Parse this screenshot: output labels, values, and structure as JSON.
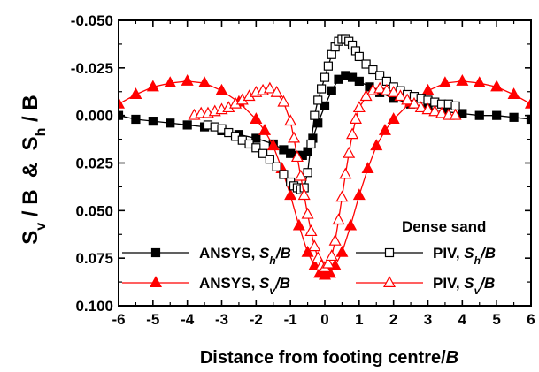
{
  "chart_data": {
    "type": "line",
    "xlabel": {
      "main": "Distance from footing centre/",
      "italic": "B"
    },
    "ylabel": {
      "p1": "S",
      "p1sub": "v",
      "p2": " / B  &  ",
      "p3": "S",
      "p3sub": "h",
      "p4": " / B"
    },
    "xlim": [
      -6,
      6
    ],
    "ylim": [
      0.1,
      -0.05
    ],
    "y_inverted": true,
    "grid": false,
    "x_ticks": [
      -6,
      -5,
      -4,
      -3,
      -2,
      -1,
      0,
      1,
      2,
      3,
      4,
      5,
      6
    ],
    "x_tick_labels": [
      "-6",
      "-5",
      "-4",
      "-3",
      "-2",
      "-1",
      "0",
      "1",
      "2",
      "3",
      "4",
      "5",
      "6"
    ],
    "y_ticks": [
      -0.05,
      -0.025,
      0,
      0.025,
      0.05,
      0.075,
      0.1
    ],
    "y_tick_labels": [
      "-0.050",
      "-0.025",
      "0.000",
      "0.025",
      "0.050",
      "0.075",
      "0.100"
    ],
    "legend": {
      "title": "Dense sand",
      "placement": "bottom"
    },
    "series": [
      {
        "name": "ANSYS, S_h/B",
        "legend_main": "ANSYS, ",
        "legend_italic": "S",
        "legend_sub": "h",
        "legend_tail": "/B",
        "color": "#000000",
        "marker": "square",
        "filled": true,
        "x": [
          -6,
          -5.5,
          -5,
          -4.5,
          -4,
          -3.5,
          -3,
          -2.5,
          -2,
          -1.5,
          -1.2,
          -1.0,
          -0.8,
          -0.65,
          -0.5,
          -0.35,
          -0.2,
          0,
          0.2,
          0.4,
          0.6,
          0.8,
          1.0,
          1.3,
          1.6,
          2.0,
          2.5,
          3.0,
          3.5,
          4.0,
          4.5,
          5.0,
          5.5,
          6.0
        ],
        "y": [
          0.0,
          0.002,
          0.003,
          0.004,
          0.005,
          0.006,
          0.008,
          0.01,
          0.012,
          0.015,
          0.018,
          0.02,
          0.021,
          0.021,
          0.019,
          0.012,
          0.004,
          -0.005,
          -0.013,
          -0.019,
          -0.021,
          -0.02,
          -0.018,
          -0.015,
          -0.012,
          -0.009,
          -0.006,
          -0.004,
          -0.002,
          -0.001,
          0.0,
          0.0,
          0.001,
          0.002
        ]
      },
      {
        "name": "ANSYS, S_v/B",
        "legend_main": "ANSYS, ",
        "legend_italic": "S",
        "legend_sub": "v",
        "legend_tail": "/B",
        "color": "#ff0000",
        "marker": "triangle",
        "filled": true,
        "x": [
          -6,
          -5.5,
          -5,
          -4.5,
          -4,
          -3.5,
          -3,
          -2.5,
          -2,
          -1.75,
          -1.5,
          -1.25,
          -1.0,
          -0.75,
          -0.5,
          -0.3,
          -0.15,
          0,
          0.15,
          0.3,
          0.5,
          0.75,
          1.0,
          1.25,
          1.5,
          1.75,
          2.0,
          2.5,
          3.0,
          3.5,
          4.0,
          4.5,
          5.0,
          5.5,
          6.0
        ],
        "y": [
          -0.006,
          -0.011,
          -0.015,
          -0.017,
          -0.018,
          -0.017,
          -0.013,
          -0.007,
          0.002,
          0.008,
          0.016,
          0.028,
          0.042,
          0.058,
          0.072,
          0.079,
          0.083,
          0.084,
          0.083,
          0.079,
          0.072,
          0.058,
          0.042,
          0.028,
          0.016,
          0.008,
          0.002,
          -0.007,
          -0.013,
          -0.017,
          -0.018,
          -0.017,
          -0.015,
          -0.011,
          -0.006
        ]
      },
      {
        "name": "PIV, S_h/B",
        "legend_main": "PIV, ",
        "legend_italic": "S",
        "legend_sub": "h",
        "legend_tail": "/B",
        "color": "#000000",
        "marker": "square",
        "filled": false,
        "x": [
          -3.4,
          -3.2,
          -3.0,
          -2.8,
          -2.6,
          -2.4,
          -2.2,
          -2.0,
          -1.8,
          -1.6,
          -1.4,
          -1.2,
          -1.0,
          -0.9,
          -0.8,
          -0.7,
          -0.6,
          -0.5,
          -0.4,
          -0.3,
          -0.2,
          -0.1,
          0,
          0.1,
          0.2,
          0.3,
          0.4,
          0.5,
          0.6,
          0.7,
          0.8,
          0.9,
          1.0,
          1.2,
          1.4,
          1.6,
          1.8,
          2.0,
          2.2,
          2.4,
          2.6,
          2.8,
          3.0,
          3.2,
          3.4,
          3.6,
          3.8
        ],
        "y": [
          0.005,
          0.006,
          0.007,
          0.009,
          0.011,
          0.013,
          0.015,
          0.017,
          0.02,
          0.023,
          0.027,
          0.031,
          0.035,
          0.037,
          0.038,
          0.039,
          0.038,
          0.03,
          0.015,
          0.0,
          -0.008,
          -0.014,
          -0.02,
          -0.026,
          -0.032,
          -0.036,
          -0.039,
          -0.04,
          -0.04,
          -0.039,
          -0.037,
          -0.034,
          -0.031,
          -0.027,
          -0.024,
          -0.021,
          -0.018,
          -0.015,
          -0.013,
          -0.011,
          -0.01,
          -0.009,
          -0.008,
          -0.007,
          -0.006,
          -0.006,
          -0.005
        ]
      },
      {
        "name": "PIV, S_v/B",
        "legend_main": "PIV, ",
        "legend_italic": "S",
        "legend_sub": "v",
        "legend_tail": "/B",
        "color": "#ff0000",
        "marker": "triangle",
        "filled": false,
        "x": [
          -3.8,
          -3.6,
          -3.4,
          -3.2,
          -3.0,
          -2.8,
          -2.6,
          -2.4,
          -2.2,
          -2.0,
          -1.8,
          -1.6,
          -1.4,
          -1.2,
          -1.0,
          -0.9,
          -0.8,
          -0.7,
          -0.6,
          -0.5,
          -0.4,
          -0.3,
          -0.2,
          -0.1,
          0,
          0.1,
          0.2,
          0.3,
          0.4,
          0.5,
          0.6,
          0.7,
          0.8,
          0.9,
          1.0,
          1.2,
          1.4,
          1.6,
          1.8,
          2.0,
          2.2,
          2.4,
          2.6,
          2.8,
          3.0,
          3.2,
          3.4,
          3.6,
          3.8
        ],
        "y": [
          0.0,
          -0.001,
          -0.001,
          -0.002,
          -0.003,
          -0.004,
          -0.006,
          -0.008,
          -0.01,
          -0.012,
          -0.013,
          -0.014,
          -0.012,
          -0.007,
          0.003,
          0.012,
          0.022,
          0.032,
          0.042,
          0.052,
          0.061,
          0.069,
          0.075,
          0.079,
          0.08,
          0.078,
          0.074,
          0.066,
          0.055,
          0.043,
          0.031,
          0.02,
          0.01,
          0.002,
          -0.004,
          -0.01,
          -0.013,
          -0.014,
          -0.013,
          -0.012,
          -0.01,
          -0.008,
          -0.006,
          -0.004,
          -0.003,
          -0.002,
          -0.001,
          0.0,
          0.0
        ]
      }
    ]
  }
}
